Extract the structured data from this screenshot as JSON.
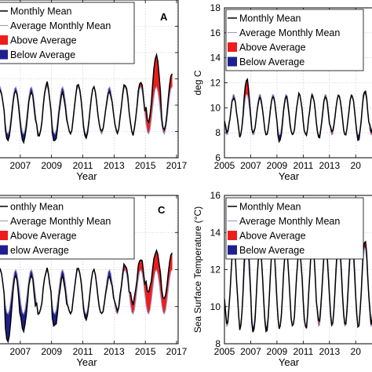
{
  "chart_data": [
    {
      "id": "A",
      "type": "area",
      "panel_label": "A",
      "xlabel": "Year",
      "ylabel": "",
      "xlim": [
        2005.4,
        2017.1
      ],
      "ylim": [
        6,
        18
      ],
      "xticks": [
        "2007",
        "2009",
        "2011",
        "2013",
        "2015",
        "2017"
      ],
      "yticks": [],
      "grid": true,
      "legend_position": "top-left",
      "legend": [
        "Monthly Mean",
        "Average Monthly Mean",
        "Above Average",
        "Below Average"
      ],
      "colors": {
        "mean": "#000000",
        "average": "#9a9ac8",
        "above": "#ee1c1c",
        "below": "#1f1f8f"
      },
      "series": {
        "years": [
          2005,
          2006,
          2007,
          2008,
          2009,
          2010,
          2011,
          2012,
          2013,
          2014,
          2015,
          2016
        ],
        "climatology_low": 7.8,
        "climatology_high": 11.4,
        "peak_offsets": [
          -0.3,
          -0.3,
          -0.4,
          0.3,
          -0.5,
          0.2,
          0.0,
          -0.4,
          0.2,
          0.4,
          2.4,
          1.0
        ],
        "trough_offsets": [
          0.5,
          -0.5,
          -0.6,
          -0.2,
          -0.6,
          0.0,
          -0.3,
          0.2,
          0.1,
          0.0,
          0.9,
          0.3
        ],
        "start": 2005.3,
        "end": 2016.75
      }
    },
    {
      "id": "B",
      "type": "area",
      "panel_label": "",
      "xlabel": "Year",
      "ylabel": "deg C",
      "xlim": [
        2005,
        2016.6
      ],
      "ylim": [
        6,
        18
      ],
      "xticks": [
        "2005",
        "2007",
        "2009",
        "2011",
        "2013",
        "20"
      ],
      "yticks": [
        "6",
        "8",
        "10",
        "12",
        "14",
        "16",
        "18"
      ],
      "grid": true,
      "legend_position": "top-left",
      "legend": [
        "Monthly Mean",
        "Average Monthly Mean",
        "Above Average",
        "Below Average"
      ],
      "colors": {
        "mean": "#000000",
        "average": "#9a9ac8",
        "above": "#ee1c1c",
        "below": "#1f1f8f"
      },
      "series": {
        "years": [
          2005,
          2006,
          2007,
          2008,
          2009,
          2010,
          2011,
          2012,
          2013,
          2014,
          2015,
          2016
        ],
        "climatology_low": 7.8,
        "climatology_high": 11.1,
        "peak_offsets": [
          -0.3,
          1.2,
          -0.3,
          -0.2,
          -0.2,
          0.0,
          -0.1,
          -0.2,
          -0.1,
          -0.1,
          0.3,
          0.7
        ],
        "trough_offsets": [
          0.3,
          -0.1,
          0.2,
          0.0,
          -0.5,
          0.0,
          0.0,
          -0.2,
          0.3,
          0.0,
          -0.4,
          0.3
        ],
        "start": 2005.0,
        "end": 2016.6
      }
    },
    {
      "id": "C",
      "type": "area",
      "panel_label": "C",
      "xlabel": "Year",
      "ylabel": "",
      "xlim": [
        2005.4,
        2017.1
      ],
      "ylim": [
        8,
        16
      ],
      "xticks": [
        "2007",
        "2009",
        "2011",
        "2013",
        "2015",
        "2017"
      ],
      "yticks": [],
      "grid": true,
      "legend_position": "top-left",
      "legend": [
        "onthly Mean",
        "Average Monthly Mean",
        "Above Average",
        "elow Average"
      ],
      "colors": {
        "mean": "#000000",
        "average": "#9a9ac8",
        "above": "#ee1c1c",
        "below": "#1f1f8f"
      },
      "series": {
        "years": [
          2005,
          2006,
          2007,
          2008,
          2009,
          2010,
          2011,
          2012,
          2013,
          2014,
          2015,
          2016
        ],
        "climatology_low": 9.6,
        "climatology_high": 12.0,
        "peak_offsets": [
          0.0,
          -0.3,
          -0.3,
          0.0,
          -0.4,
          0.1,
          0.0,
          -0.4,
          0.3,
          0.6,
          1.0,
          0.9
        ],
        "trough_offsets": [
          0.0,
          -1.5,
          -0.9,
          0.0,
          -0.7,
          0.0,
          -0.3,
          0.0,
          0.2,
          0.6,
          1.2,
          0.8
        ],
        "start": 2005.3,
        "end": 2016.75
      }
    },
    {
      "id": "D",
      "type": "area",
      "panel_label": "",
      "xlabel": "Year",
      "ylabel": "Sea Surface Temperature (°C)",
      "xlim": [
        2005,
        2016.6
      ],
      "ylim": [
        8,
        16
      ],
      "xticks": [
        "2005",
        "2007",
        "2009",
        "2011",
        "2013",
        "20"
      ],
      "yticks": [
        "8",
        "10",
        "12",
        "14",
        "16"
      ],
      "grid": true,
      "legend_position": "top-left",
      "legend": [
        "Monthly Mean",
        "Average Monthly Mean",
        "Above Average",
        "Below Average"
      ],
      "colors": {
        "mean": "#000000",
        "average": "#9a9ac8",
        "above": "#ee1c1c",
        "below": "#1f1f8f"
      },
      "series": {
        "years": [
          2005,
          2006,
          2007,
          2008,
          2009,
          2010,
          2011,
          2012,
          2013,
          2014,
          2015,
          2016
        ],
        "climatology_low": 8.9,
        "climatology_high": 13.2,
        "peak_offsets": [
          0.0,
          0.9,
          0.0,
          0.2,
          0.0,
          -0.1,
          0.2,
          0.1,
          0.4,
          0.5,
          0.4,
          1.3
        ],
        "trough_offsets": [
          0.2,
          -0.1,
          -0.3,
          -0.3,
          -0.1,
          0.0,
          -0.1,
          0.3,
          0.1,
          0.1,
          0.0,
          0.2
        ],
        "start": 2005.0,
        "end": 2016.6
      }
    }
  ]
}
